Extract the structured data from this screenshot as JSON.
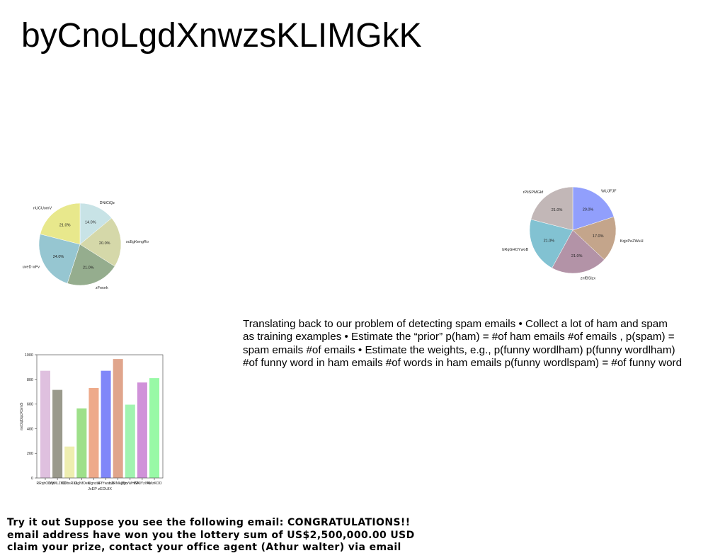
{
  "title": "byCnoLgdXnwzsKLIMGkK",
  "paragraph": {
    "lines": [
      "Translating back to our problem of detecting spam emails • Collect a lot of ham and spam",
      "as training examples • Estimate the “prior” p(ham) = #of ham emails #of emails , p(spam) =",
      "spam emails #of emails • Estimate the weights, e.g., p(funny wordlham) p(funny wordlham)",
      "#of funny word in ham emails #of words in ham emails p(funny wordlspam) = #of funny word"
    ]
  },
  "footer": {
    "lines": [
      "Try it out Suppose you see the following email: CONGRATULATIONS!!",
      "email address have won you the lottery sum of US$2,500,000.00 USD",
      "claim your prize, contact your office agent (Athur walter) via email"
    ]
  },
  "chart_data": [
    {
      "type": "pie",
      "labels": [
        "DNiCiQz",
        "xcEgKengRo",
        "zFwork",
        "uveD wFv",
        "nUCUomV"
      ],
      "values": [
        14.0,
        20.0,
        21.0,
        24.0,
        21.0
      ],
      "value_labels": [
        "14.0%",
        "20.0%",
        "21.0%",
        "24.0%",
        "21.0%"
      ],
      "colors": [
        "#c8e3e6",
        "#d5d8a9",
        "#95ad8e",
        "#96c6d1",
        "#e8e88c"
      ]
    },
    {
      "type": "pie",
      "labels": [
        "WUJFJF",
        "KqjcPeZWuH",
        "znfBSlzx",
        "bRqGHOYwoB",
        "rPliSPMGkf"
      ],
      "values": [
        20.0,
        17.0,
        21.0,
        21.0,
        21.0
      ],
      "value_labels": [
        "20.0%",
        "17.0%",
        "21.0%",
        "21.0%",
        "21.0%"
      ],
      "colors": [
        "#919ffc",
        "#c4a58b",
        "#b393a7",
        "#82c2d2",
        "#c2b7b7"
      ]
    },
    {
      "type": "bar",
      "categories": [
        "RRqhODVf",
        "lYyMLZMD",
        "CDbsRXJ",
        "tXgNfOes",
        "Nlgnzlw",
        "JFfYwsLJb",
        "mJRMkgQo",
        "ZbcvWHGK",
        "WNIYzlYw",
        "AMzKOO"
      ],
      "values": [
        870,
        715,
        255,
        565,
        730,
        870,
        965,
        595,
        775,
        810
      ],
      "colors": [
        "#dfc0df",
        "#9a9a8c",
        "#eeeeb0",
        "#9ee08a",
        "#eeaa8a",
        "#8087f9",
        "#e0a58c",
        "#a1f4b0",
        "#d092d9",
        "#98f9a6"
      ],
      "xlabel": "JcEP zEDUIX",
      "ylabel": "nxOqDqcXGmS",
      "ylim": [
        0,
        1000
      ],
      "yticks": [
        0,
        200,
        400,
        600,
        800,
        1000
      ]
    }
  ]
}
